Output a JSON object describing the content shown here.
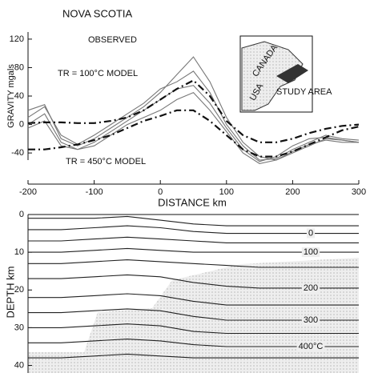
{
  "chart_data": [
    {
      "type": "line",
      "title": "NOVA SCOTIA",
      "xlabel": "DISTANCE km",
      "ylabel": "GRAVITY mgals",
      "xlim": [
        -200,
        300
      ],
      "xticks": [
        -200,
        -100,
        0,
        100,
        200,
        300
      ],
      "ylim": [
        -50,
        130
      ],
      "yticks": [
        -40,
        0,
        40,
        80,
        120
      ],
      "annotations": [
        "OBSERVED",
        "TR = 100°C MODEL",
        "TR = 450°C MODEL"
      ],
      "inset": [
        "CANADA",
        "USA",
        "STUDY AREA"
      ],
      "x": [
        -200,
        -175,
        -150,
        -125,
        -100,
        -75,
        -50,
        -25,
        0,
        25,
        50,
        75,
        100,
        125,
        150,
        175,
        200,
        225,
        250,
        275,
        300
      ],
      "series": [
        {
          "color": "#777",
          "dash": "none",
          "values": [
            20,
            28,
            -20,
            -30,
            -20,
            -5,
            10,
            25,
            45,
            70,
            95,
            60,
            10,
            -25,
            -45,
            -50,
            -40,
            -30,
            -20,
            -22,
            -25
          ]
        },
        {
          "color": "#777",
          "dash": "none",
          "values": [
            10,
            25,
            -15,
            -28,
            -15,
            0,
            15,
            30,
            50,
            60,
            75,
            45,
            0,
            -30,
            -50,
            -48,
            -35,
            -25,
            -15,
            -20,
            -22
          ]
        },
        {
          "color": "#777",
          "dash": "none",
          "values": [
            0,
            15,
            -25,
            -35,
            -25,
            -10,
            5,
            20,
            35,
            50,
            55,
            30,
            -5,
            -35,
            -52,
            -45,
            -30,
            -20,
            -18,
            -22,
            -25
          ]
        },
        {
          "color": "#777",
          "dash": "none",
          "values": [
            -5,
            5,
            -30,
            -35,
            -30,
            -15,
            0,
            10,
            20,
            35,
            45,
            20,
            -10,
            -40,
            -55,
            -50,
            -38,
            -28,
            -22,
            -25,
            -25
          ]
        },
        {
          "color": "#111",
          "dash": "9 4 2 4",
          "values": [
            2,
            3,
            3,
            2,
            2,
            5,
            10,
            20,
            35,
            50,
            62,
            40,
            5,
            -15,
            -25,
            -25,
            -20,
            -12,
            -6,
            -2,
            0
          ]
        },
        {
          "color": "#111",
          "dash": "9 4 2 4",
          "values": [
            -35,
            -35,
            -32,
            -28,
            -22,
            -15,
            -5,
            5,
            12,
            20,
            20,
            5,
            -15,
            -35,
            -45,
            -45,
            -38,
            -28,
            -18,
            -8,
            -3
          ]
        }
      ]
    },
    {
      "type": "line",
      "ylabel": "DEPTH km",
      "xlim": [
        -200,
        300
      ],
      "ylim": [
        0,
        42
      ],
      "y_inverted": true,
      "yticks": [
        0,
        10,
        20,
        30,
        40
      ],
      "x": [
        -200,
        -150,
        -100,
        -50,
        0,
        50,
        100,
        150,
        200,
        250,
        300
      ],
      "series": [
        {
          "color": "#222",
          "values": [
            1,
            1,
            1,
            0.5,
            1.5,
            2.5,
            3,
            3,
            3,
            3,
            3
          ]
        },
        {
          "name": "0",
          "color": "#222",
          "values": [
            4,
            4,
            3.5,
            3,
            3.5,
            4.5,
            5,
            5,
            5,
            5,
            5
          ]
        },
        {
          "color": "#222",
          "values": [
            7,
            7,
            6.5,
            6,
            6.5,
            7,
            7.5,
            7.5,
            7.5,
            7.5,
            7.5
          ]
        },
        {
          "name": "100",
          "color": "#222",
          "values": [
            10,
            10,
            9.5,
            9,
            9.5,
            10,
            10,
            10,
            10,
            10,
            10
          ]
        },
        {
          "color": "#222",
          "values": [
            13,
            13,
            12.5,
            12,
            12.5,
            13,
            13.5,
            14,
            14,
            14,
            14
          ]
        },
        {
          "name": "200",
          "color": "#222",
          "values": [
            17,
            17,
            16.5,
            16,
            16.5,
            18,
            19,
            19.5,
            19.5,
            19.5,
            19.5
          ]
        },
        {
          "color": "#222",
          "values": [
            22,
            22,
            21.5,
            21,
            21.5,
            23,
            24,
            24,
            24,
            24,
            24
          ]
        },
        {
          "name": "300",
          "color": "#222",
          "values": [
            26,
            26,
            25.5,
            25,
            25.5,
            27,
            28,
            28,
            28,
            28,
            28
          ]
        },
        {
          "color": "#222",
          "values": [
            30,
            30,
            29.5,
            29,
            29.5,
            31,
            31.5,
            31.5,
            31.5,
            31.5,
            31.5
          ]
        },
        {
          "name": "400°C",
          "color": "#222",
          "values": [
            34,
            34,
            33.5,
            33,
            33.5,
            34.5,
            35,
            35,
            35,
            35,
            35
          ]
        },
        {
          "color": "#222",
          "values": [
            38,
            38,
            37.5,
            37,
            37.5,
            38,
            38,
            38,
            38,
            38,
            38
          ]
        }
      ]
    }
  ]
}
